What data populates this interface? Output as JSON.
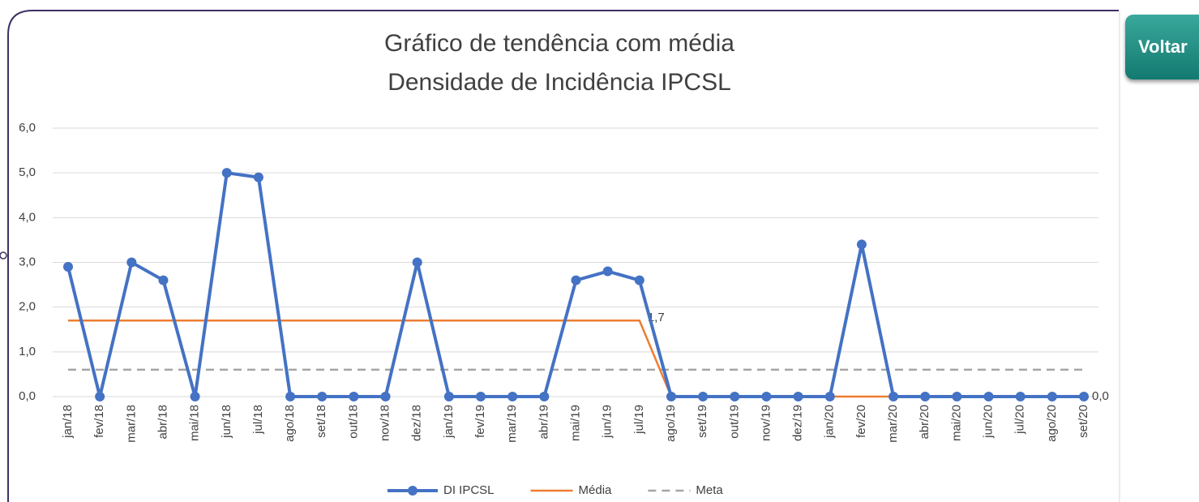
{
  "button": "Voltar",
  "chart_data": {
    "type": "line",
    "title": [
      "Gráfico de tendência com média",
      "Densidade de Incidência IPCSL"
    ],
    "categories": [
      "jan/18",
      "fev/18",
      "mar/18",
      "abr/18",
      "mai/18",
      "jun/18",
      "jul/18",
      "ago/18",
      "set/18",
      "out/18",
      "nov/18",
      "dez/18",
      "jan/19",
      "fev/19",
      "mar/19",
      "abr/19",
      "mai/19",
      "jun/19",
      "jul/19",
      "ago/19",
      "set/19",
      "out/19",
      "nov/19",
      "dez/19",
      "jan/20",
      "fev/20",
      "mar/20",
      "abr/20",
      "mai/20",
      "jun/20",
      "jul/20",
      "ago/20",
      "set/20"
    ],
    "series": [
      {
        "name": "DI IPCSL",
        "color": "#4472c4",
        "marker": true,
        "dash": false,
        "values": [
          2.9,
          0,
          3.0,
          2.6,
          0,
          5.0,
          4.9,
          0,
          0,
          0,
          0,
          3.0,
          0,
          0,
          0,
          0,
          2.6,
          2.8,
          2.6,
          0,
          0,
          0,
          0,
          0,
          0,
          3.4,
          0,
          0,
          0,
          0,
          0,
          0,
          0
        ]
      },
      {
        "name": "Média",
        "color": "#ed7d31",
        "marker": false,
        "dash": false,
        "values": [
          1.7,
          1.7,
          1.7,
          1.7,
          1.7,
          1.7,
          1.7,
          1.7,
          1.7,
          1.7,
          1.7,
          1.7,
          1.7,
          1.7,
          1.7,
          1.7,
          1.7,
          1.7,
          1.7,
          0.0,
          0.0,
          0.0,
          0.0,
          0.0,
          0.0,
          0.0,
          0.0,
          0.0,
          0.0,
          0.0,
          0.0,
          0.0,
          0.0
        ],
        "value_labels": [
          null,
          null,
          null,
          null,
          null,
          null,
          null,
          null,
          null,
          null,
          null,
          null,
          null,
          null,
          null,
          null,
          null,
          null,
          "1,7",
          null,
          null,
          null,
          null,
          null,
          null,
          null,
          null,
          null,
          null,
          null,
          null,
          null,
          "0,0"
        ]
      },
      {
        "name": "Meta",
        "color": "#a5a5a5",
        "marker": false,
        "dash": true,
        "values": [
          0.6,
          0.6,
          0.6,
          0.6,
          0.6,
          0.6,
          0.6,
          0.6,
          0.6,
          0.6,
          0.6,
          0.6,
          0.6,
          0.6,
          0.6,
          0.6,
          0.6,
          0.6,
          0.6,
          0.6,
          0.6,
          0.6,
          0.6,
          0.6,
          0.6,
          0.6,
          0.6,
          0.6,
          0.6,
          0.6,
          0.6,
          0.6,
          0.6
        ]
      }
    ],
    "ylim": [
      0,
      6
    ],
    "yticks": [
      {
        "value": 0,
        "label": "0,0"
      },
      {
        "value": 1,
        "label": "1,0"
      },
      {
        "value": 2,
        "label": "2,0"
      },
      {
        "value": 3,
        "label": "3,0"
      },
      {
        "value": 4,
        "label": "4,0"
      },
      {
        "value": 5,
        "label": "5,0"
      },
      {
        "value": 6,
        "label": "6,0"
      }
    ],
    "grid": true,
    "legend": "bottom"
  }
}
